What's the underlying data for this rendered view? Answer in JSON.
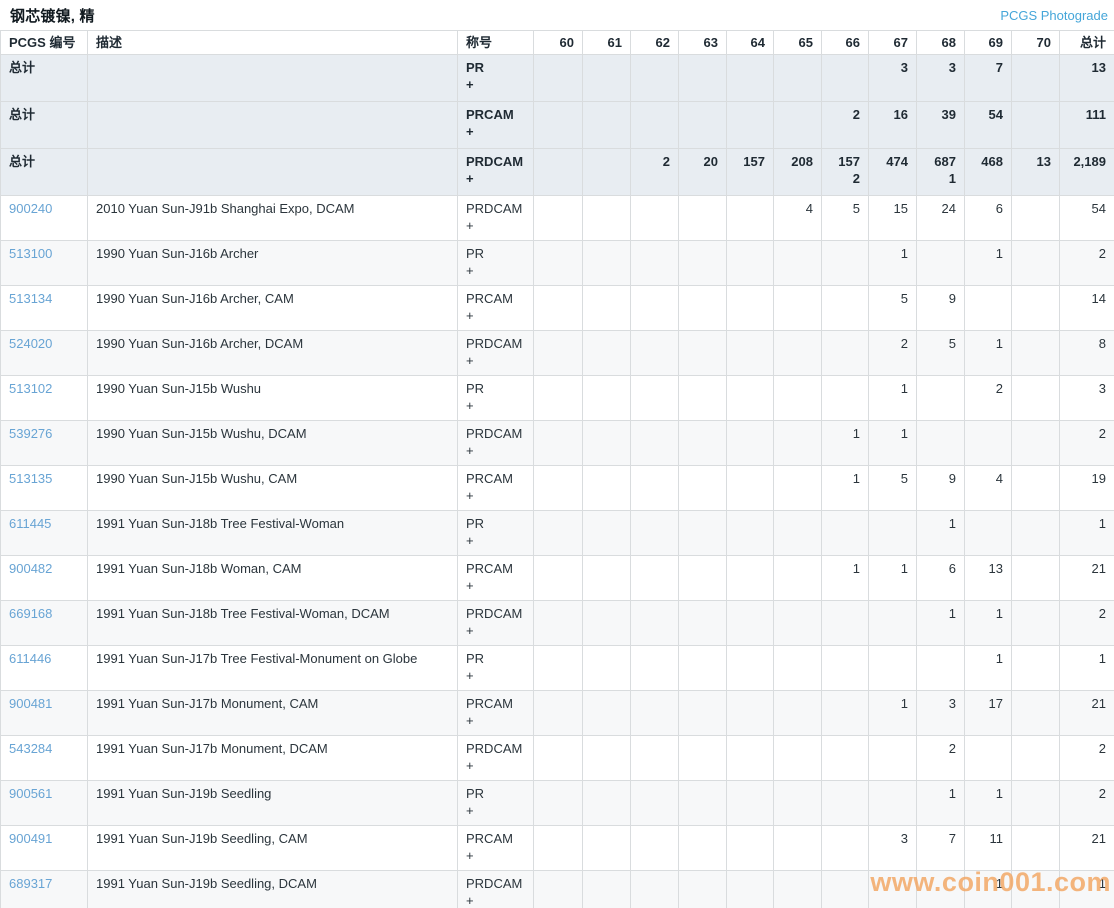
{
  "page": {
    "title": "钢芯镀镍, 精",
    "photograde_link": "PCGS Photograde",
    "watermark": "www.coin001.com"
  },
  "colors": {
    "link_blue": "#68a4d4",
    "photograde_blue": "#45a6d9",
    "summary_row_bg": "#e8edf2",
    "alt_row_bg": "#f7f8f9",
    "watermark_orange": "#f1a35c",
    "border_gray": "#d9dcde"
  },
  "table": {
    "headers": {
      "pcgs": "PCGS 编号",
      "description": "描述",
      "designation": "称号",
      "grades": [
        "60",
        "61",
        "62",
        "63",
        "64",
        "65",
        "66",
        "67",
        "68",
        "69",
        "70"
      ],
      "total": "总计"
    },
    "summary_rows": [
      {
        "label": "总计",
        "designation": "PR",
        "designation_plus": "+",
        "grades": {
          "67": "3",
          "68": "3",
          "69": "7"
        },
        "grades_plus": {},
        "total": "13"
      },
      {
        "label": "总计",
        "designation": "PRCAM",
        "designation_plus": "+",
        "grades": {
          "66": "2",
          "67": "16",
          "68": "39",
          "69": "54"
        },
        "grades_plus": {},
        "total": "111"
      },
      {
        "label": "总计",
        "designation": "PRDCAM",
        "designation_plus": "+",
        "grades": {
          "62": "2",
          "63": "20",
          "64": "157",
          "65": "208",
          "66": "157",
          "67": "474",
          "68": "687",
          "69": "468",
          "70": "13"
        },
        "grades_plus": {
          "66": "2",
          "68": "1"
        },
        "total": "2,189"
      }
    ],
    "coin_rows": [
      {
        "pcgs": "900240",
        "description": "2010 Yuan Sun-J91b Shanghai Expo, DCAM",
        "designation": "PRDCAM",
        "designation_plus": "+",
        "grades": {
          "65": "4",
          "66": "5",
          "67": "15",
          "68": "24",
          "69": "6"
        },
        "total": "54"
      },
      {
        "pcgs": "513100",
        "description": "1990 Yuan Sun-J16b Archer",
        "designation": "PR",
        "designation_plus": "+",
        "grades": {
          "67": "1",
          "69": "1"
        },
        "total": "2"
      },
      {
        "pcgs": "513134",
        "description": "1990 Yuan Sun-J16b Archer, CAM",
        "designation": "PRCAM",
        "designation_plus": "+",
        "grades": {
          "67": "5",
          "68": "9"
        },
        "total": "14"
      },
      {
        "pcgs": "524020",
        "description": "1990 Yuan Sun-J16b Archer, DCAM",
        "designation": "PRDCAM",
        "designation_plus": "+",
        "grades": {
          "67": "2",
          "68": "5",
          "69": "1"
        },
        "total": "8"
      },
      {
        "pcgs": "513102",
        "description": "1990 Yuan Sun-J15b Wushu",
        "designation": "PR",
        "designation_plus": "+",
        "grades": {
          "67": "1",
          "69": "2"
        },
        "total": "3"
      },
      {
        "pcgs": "539276",
        "description": "1990 Yuan Sun-J15b Wushu, DCAM",
        "designation": "PRDCAM",
        "designation_plus": "+",
        "grades": {
          "66": "1",
          "67": "1"
        },
        "total": "2"
      },
      {
        "pcgs": "513135",
        "description": "1990 Yuan Sun-J15b Wushu, CAM",
        "designation": "PRCAM",
        "designation_plus": "+",
        "grades": {
          "66": "1",
          "67": "5",
          "68": "9",
          "69": "4"
        },
        "total": "19"
      },
      {
        "pcgs": "611445",
        "description": "1991 Yuan Sun-J18b Tree Festival-Woman",
        "designation": "PR",
        "designation_plus": "+",
        "grades": {
          "68": "1"
        },
        "total": "1"
      },
      {
        "pcgs": "900482",
        "description": "1991 Yuan Sun-J18b Woman, CAM",
        "designation": "PRCAM",
        "designation_plus": "+",
        "grades": {
          "66": "1",
          "67": "1",
          "68": "6",
          "69": "13"
        },
        "total": "21"
      },
      {
        "pcgs": "669168",
        "description": "1991 Yuan Sun-J18b Tree Festival-Woman, DCAM",
        "designation": "PRDCAM",
        "designation_plus": "+",
        "grades": {
          "68": "1",
          "69": "1"
        },
        "total": "2"
      },
      {
        "pcgs": "611446",
        "description": "1991 Yuan Sun-J17b Tree Festival-Monument on Globe",
        "designation": "PR",
        "designation_plus": "+",
        "grades": {
          "69": "1"
        },
        "total": "1"
      },
      {
        "pcgs": "900481",
        "description": "1991 Yuan Sun-J17b Monument, CAM",
        "designation": "PRCAM",
        "designation_plus": "+",
        "grades": {
          "67": "1",
          "68": "3",
          "69": "17"
        },
        "total": "21"
      },
      {
        "pcgs": "543284",
        "description": "1991 Yuan Sun-J17b Monument, DCAM",
        "designation": "PRDCAM",
        "designation_plus": "+",
        "grades": {
          "68": "2"
        },
        "total": "2"
      },
      {
        "pcgs": "900561",
        "description": "1991 Yuan Sun-J19b Seedling",
        "designation": "PR",
        "designation_plus": "+",
        "grades": {
          "68": "1",
          "69": "1"
        },
        "total": "2"
      },
      {
        "pcgs": "900491",
        "description": "1991 Yuan Sun-J19b Seedling, CAM",
        "designation": "PRCAM",
        "designation_plus": "+",
        "grades": {
          "67": "3",
          "68": "7",
          "69": "11"
        },
        "total": "21"
      },
      {
        "pcgs": "689317",
        "description": "1991 Yuan Sun-J19b Seedling, DCAM",
        "designation": "PRDCAM",
        "designation_plus": "+",
        "grades": {
          "69": "1"
        },
        "total": "1"
      }
    ]
  }
}
